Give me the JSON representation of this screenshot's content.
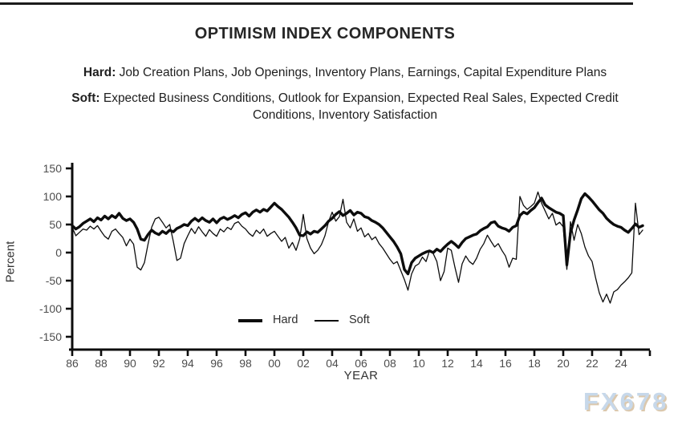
{
  "header": {
    "title": "OPTIMISM INDEX COMPONENTS",
    "hard_label": "Hard:",
    "hard_text": " Job Creation Plans, Job Openings, Inventory Plans, Earnings, Capital Expenditure Plans",
    "soft_label": "Soft:",
    "soft_text": " Expected Business Conditions, Outlook for Expansion, Expected Real Sales, Expected Credit Conditions, Inventory Satisfaction"
  },
  "watermark": {
    "text": "FX678",
    "color": "#c7d8ea",
    "shadow_color": "#dbc8ad"
  },
  "chart_data": {
    "type": "line",
    "title": "OPTIMISM INDEX COMPONENTS",
    "xlabel": "YEAR",
    "ylabel": "Percent",
    "xlim": [
      1986,
      2026
    ],
    "ylim": [
      -150,
      150
    ],
    "grid": false,
    "legend_position": "bottom-center-inside",
    "line_color": "#0d0d0d",
    "yticks": [
      150,
      100,
      50,
      0,
      -50,
      -100,
      -150
    ],
    "xticks": [
      {
        "label": "86",
        "year": 1986
      },
      {
        "label": "88",
        "year": 1988
      },
      {
        "label": "90",
        "year": 1990
      },
      {
        "label": "92",
        "year": 1992
      },
      {
        "label": "94",
        "year": 1994
      },
      {
        "label": "96",
        "year": 1996
      },
      {
        "label": "98",
        "year": 1998
      },
      {
        "label": "00",
        "year": 2000
      },
      {
        "label": "02",
        "year": 2002
      },
      {
        "label": "04",
        "year": 2004
      },
      {
        "label": "06",
        "year": 2006
      },
      {
        "label": "08",
        "year": 2008
      },
      {
        "label": "10",
        "year": 2010
      },
      {
        "label": "12",
        "year": 2012
      },
      {
        "label": "14",
        "year": 2014
      },
      {
        "label": "16",
        "year": 2016
      },
      {
        "label": "18",
        "year": 2018
      },
      {
        "label": "20",
        "year": 2020
      },
      {
        "label": "22",
        "year": 2022
      },
      {
        "label": "24",
        "year": 2024
      },
      {
        "label": "",
        "year": 2026
      }
    ],
    "x_start": 1986,
    "x_step": 0.25,
    "series": [
      {
        "name": "Hard",
        "stroke_width": 3.4,
        "values": [
          48,
          42,
          46,
          52,
          56,
          60,
          55,
          62,
          58,
          65,
          60,
          66,
          62,
          70,
          61,
          57,
          60,
          54,
          42,
          24,
          22,
          32,
          40,
          35,
          32,
          38,
          34,
          40,
          37,
          43,
          46,
          50,
          48,
          56,
          61,
          56,
          62,
          57,
          54,
          60,
          53,
          60,
          63,
          59,
          62,
          66,
          62,
          68,
          71,
          65,
          72,
          76,
          72,
          77,
          74,
          81,
          88,
          82,
          77,
          70,
          63,
          54,
          44,
          31,
          30,
          37,
          33,
          38,
          36,
          42,
          48,
          56,
          61,
          68,
          73,
          66,
          70,
          75,
          67,
          72,
          70,
          64,
          62,
          57,
          54,
          50,
          44,
          36,
          28,
          20,
          10,
          -2,
          -30,
          -38,
          -18,
          -10,
          -6,
          -2,
          1,
          3,
          0,
          6,
          2,
          9,
          15,
          20,
          15,
          9,
          18,
          25,
          28,
          31,
          33,
          39,
          43,
          46,
          53,
          55,
          47,
          44,
          42,
          38,
          45,
          48,
          66,
          72,
          69,
          75,
          80,
          89,
          97,
          85,
          80,
          76,
          72,
          70,
          66,
          -22,
          35,
          58,
          76,
          96,
          105,
          99,
          92,
          84,
          76,
          70,
          61,
          55,
          50,
          47,
          45,
          40,
          36,
          43,
          51,
          45,
          48
        ]
      },
      {
        "name": "Soft",
        "stroke_width": 1.3,
        "values": [
          45,
          30,
          36,
          42,
          40,
          47,
          42,
          48,
          38,
          29,
          24,
          38,
          42,
          34,
          27,
          12,
          24,
          15,
          -26,
          -31,
          -18,
          15,
          45,
          60,
          63,
          54,
          44,
          50,
          20,
          -14,
          -10,
          16,
          30,
          43,
          34,
          46,
          37,
          29,
          41,
          34,
          29,
          42,
          37,
          45,
          41,
          52,
          55,
          47,
          42,
          34,
          29,
          40,
          34,
          42,
          29,
          34,
          38,
          29,
          20,
          27,
          8,
          18,
          4,
          24,
          68,
          25,
          8,
          -2,
          4,
          14,
          30,
          55,
          72,
          56,
          64,
          95,
          54,
          44,
          60,
          38,
          44,
          28,
          34,
          23,
          28,
          16,
          8,
          -2,
          -12,
          -20,
          -16,
          -32,
          -48,
          -67,
          -38,
          -24,
          -20,
          -8,
          -16,
          4,
          -2,
          -16,
          -50,
          -34,
          8,
          4,
          -26,
          -53,
          -20,
          -6,
          -16,
          -21,
          -10,
          6,
          16,
          31,
          20,
          10,
          16,
          4,
          -6,
          -26,
          -10,
          -12,
          100,
          84,
          77,
          82,
          88,
          108,
          88,
          74,
          60,
          70,
          49,
          54,
          46,
          -30,
          55,
          22,
          50,
          34,
          10,
          -6,
          -16,
          -46,
          -72,
          -88,
          -74,
          -90,
          -70,
          -66,
          -58,
          -52,
          -45,
          -36,
          88,
          32,
          40
        ]
      }
    ]
  }
}
